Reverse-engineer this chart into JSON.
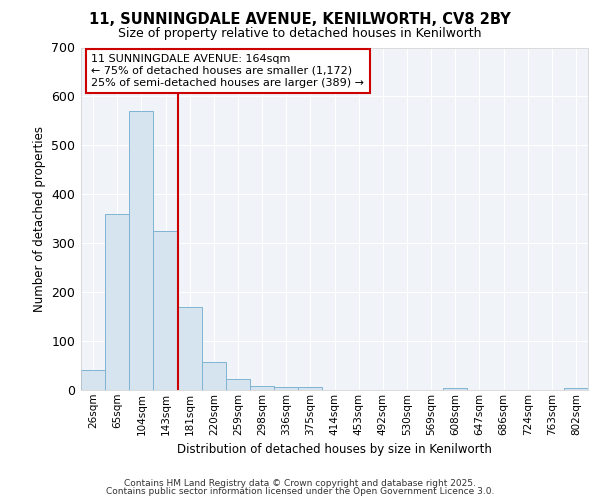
{
  "title_line1": "11, SUNNINGDALE AVENUE, KENILWORTH, CV8 2BY",
  "title_line2": "Size of property relative to detached houses in Kenilworth",
  "xlabel": "Distribution of detached houses by size in Kenilworth",
  "ylabel": "Number of detached properties",
  "categories": [
    "26sqm",
    "65sqm",
    "104sqm",
    "143sqm",
    "181sqm",
    "220sqm",
    "259sqm",
    "298sqm",
    "336sqm",
    "375sqm",
    "414sqm",
    "453sqm",
    "492sqm",
    "530sqm",
    "569sqm",
    "608sqm",
    "647sqm",
    "686sqm",
    "724sqm",
    "763sqm",
    "802sqm"
  ],
  "values": [
    40,
    360,
    570,
    325,
    170,
    57,
    23,
    9,
    6,
    6,
    0,
    0,
    0,
    0,
    0,
    5,
    0,
    0,
    0,
    0,
    5
  ],
  "bar_color": "#d6e4f0",
  "bar_edge_color": "#7fb3d3",
  "vline_color": "#cc0000",
  "annotation_title": "11 SUNNINGDALE AVENUE: 164sqm",
  "annotation_line2": "← 75% of detached houses are smaller (1,172)",
  "annotation_line3": "25% of semi-detached houses are larger (389) →",
  "ylim": [
    0,
    700
  ],
  "yticks": [
    0,
    100,
    200,
    300,
    400,
    500,
    600,
    700
  ],
  "background_color": "#ffffff",
  "plot_background": "#f0f4f8",
  "grid_color": "#ffffff",
  "footer1": "Contains HM Land Registry data © Crown copyright and database right 2025.",
  "footer2": "Contains public sector information licensed under the Open Government Licence 3.0."
}
